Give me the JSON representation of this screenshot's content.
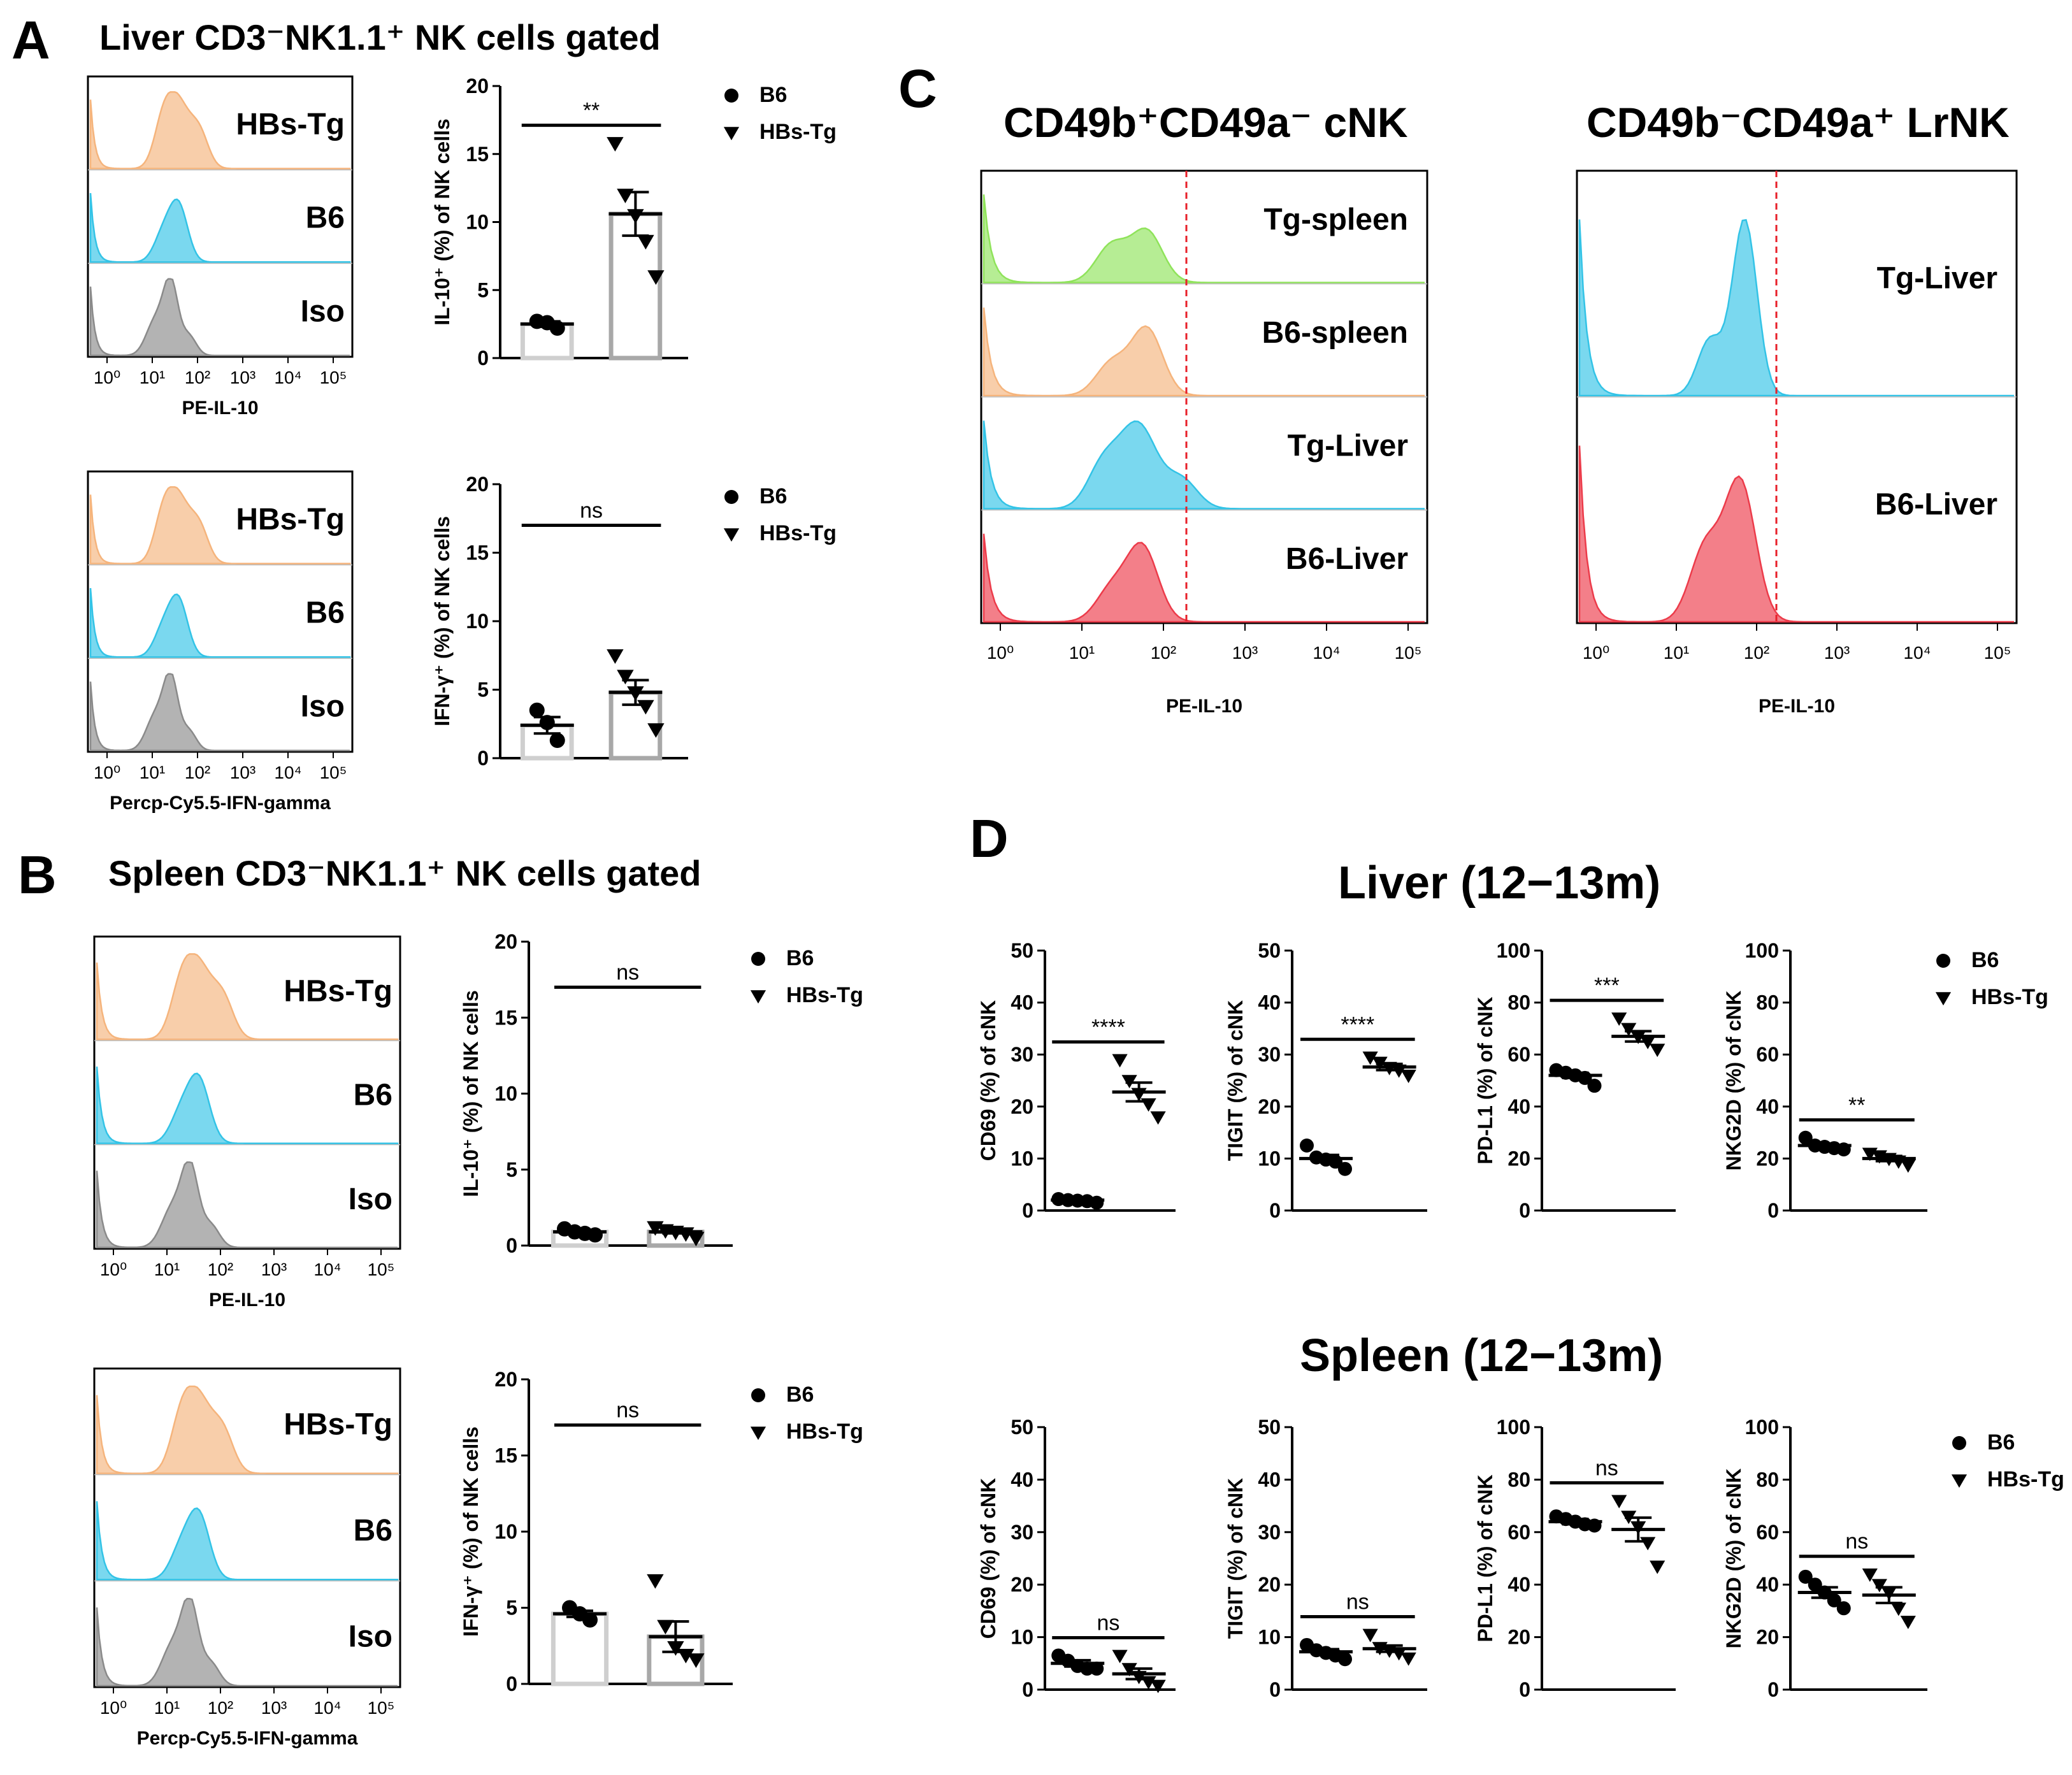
{
  "panels": {
    "A": {
      "letter": "A",
      "title": "Liver CD3⁻NK1.1⁺ NK cells gated",
      "histograms": [
        {
          "rows": [
            "HBs-Tg",
            "B6",
            "Iso"
          ],
          "xlabel": "PE-IL-10"
        },
        {
          "rows": [
            "HBs-Tg",
            "B6",
            "Iso"
          ],
          "xlabel": "Percp-Cy5.5-IFN-gamma"
        }
      ]
    },
    "B": {
      "letter": "B",
      "title": "Spleen CD3⁻NK1.1⁺ NK cells gated",
      "histograms": [
        {
          "rows": [
            "HBs-Tg",
            "B6",
            "Iso"
          ],
          "xlabel": "PE-IL-10"
        },
        {
          "rows": [
            "HBs-Tg",
            "B6",
            "Iso"
          ],
          "xlabel": "Percp-Cy5.5-IFN-gamma"
        }
      ]
    },
    "C": {
      "letter": "C",
      "left_title": "CD49b⁺CD49a⁻ cNK",
      "right_title": "CD49b⁻CD49a⁺ LrNK",
      "left_rows": [
        "Tg-spleen",
        "B6-spleen",
        "Tg-Liver",
        "B6-Liver"
      ],
      "right_rows": [
        "Tg-Liver",
        "B6-Liver"
      ],
      "xlabel": "PE-IL-10"
    },
    "D": {
      "letter": "D",
      "liver_title": "Liver (12−13m)",
      "spleen_title": "Spleen (12−13m)"
    }
  },
  "axis_ticks": {
    "log_decades": [
      "10⁰",
      "10¹",
      "10²",
      "10³",
      "10⁴",
      "10⁵"
    ]
  },
  "legend": {
    "b6": "B6",
    "tg": "HBs-Tg"
  },
  "colors": {
    "tg": "#f5b47c",
    "b6": "#33c3e6",
    "iso": "#8a8a8a",
    "green": "#8fe35a",
    "red": "#ec3b4a",
    "dash": "#e8202a"
  },
  "chart_data": [
    {
      "id": "A-IL10",
      "type": "bar",
      "categories": [
        "B6",
        "HBs-Tg"
      ],
      "ylabel": "IL-10⁺ (%) of NK cells",
      "ylim": [
        0,
        20
      ],
      "yticks": [
        "0",
        "5",
        "10",
        "15",
        "20"
      ],
      "means": [
        2.5,
        10.6
      ],
      "sem": [
        0.2,
        1.6
      ],
      "points": [
        [
          2.7,
          2.6,
          2.2
        ],
        [
          15.8,
          12.0,
          10.5,
          8.6,
          6.0
        ]
      ],
      "significance": "**"
    },
    {
      "id": "A-IFN",
      "type": "bar",
      "categories": [
        "B6",
        "HBs-Tg"
      ],
      "ylabel": "IFN-γ⁺ (%) of NK cells",
      "ylim": [
        0,
        20
      ],
      "yticks": [
        "0",
        "5",
        "10",
        "15",
        "20"
      ],
      "means": [
        2.4,
        4.8
      ],
      "sem": [
        0.6,
        0.9
      ],
      "points": [
        [
          3.5,
          2.6,
          1.3
        ],
        [
          7.5,
          6.0,
          4.8,
          3.8,
          2.1
        ]
      ],
      "significance": "ns"
    },
    {
      "id": "B-IL10",
      "type": "bar",
      "categories": [
        "B6",
        "HBs-Tg"
      ],
      "ylabel": "IL-10⁺ (%) of NK cells",
      "ylim": [
        0,
        20
      ],
      "yticks": [
        "0",
        "5",
        "10",
        "15",
        "20"
      ],
      "means": [
        0.9,
        0.9
      ],
      "sem": [
        0.1,
        0.1
      ],
      "points": [
        [
          1.1,
          0.9,
          0.8,
          0.7
        ],
        [
          1.2,
          1.0,
          0.9,
          0.8,
          0.5
        ]
      ],
      "significance": "ns"
    },
    {
      "id": "B-IFN",
      "type": "bar",
      "categories": [
        "B6",
        "HBs-Tg"
      ],
      "ylabel": "IFN-γ⁺ (%) of NK cells",
      "ylim": [
        0,
        20
      ],
      "yticks": [
        "0",
        "5",
        "10",
        "15",
        "20"
      ],
      "means": [
        4.6,
        3.1
      ],
      "sem": [
        0.2,
        1.0
      ],
      "points": [
        [
          5.0,
          4.6,
          4.2
        ],
        [
          6.8,
          3.8,
          2.4,
          1.9,
          1.6
        ]
      ],
      "significance": "ns"
    },
    {
      "id": "D-L-CD69",
      "type": "scatter",
      "categories": [
        "B6",
        "HBs-Tg"
      ],
      "ylabel": "CD69 (%) of cNK",
      "ylim": [
        0,
        50
      ],
      "yticks": [
        "0",
        "10",
        "20",
        "30",
        "40",
        "50"
      ],
      "means": [
        2.0,
        22.8
      ],
      "sem": [
        0.2,
        1.8
      ],
      "points": [
        [
          2.2,
          2.0,
          1.9,
          1.8,
          1.5
        ],
        [
          29.0,
          25.0,
          22.5,
          20.5,
          18.0
        ]
      ],
      "significance": "****"
    },
    {
      "id": "D-L-TIGIT",
      "type": "scatter",
      "categories": [
        "B6",
        "HBs-Tg"
      ],
      "ylabel": "TIGIT (%) of cNK",
      "ylim": [
        0,
        50
      ],
      "yticks": [
        "0",
        "10",
        "20",
        "30",
        "40",
        "50"
      ],
      "means": [
        10.0,
        27.6
      ],
      "sem": [
        0.7,
        0.6
      ],
      "points": [
        [
          12.5,
          10.2,
          9.8,
          9.4,
          8.0
        ],
        [
          29.5,
          28.5,
          27.5,
          27.0,
          26.0
        ]
      ],
      "significance": "****"
    },
    {
      "id": "D-L-PDL1",
      "type": "scatter",
      "categories": [
        "B6",
        "HBs-Tg"
      ],
      "ylabel": "PD-L1 (%) of cNK",
      "ylim": [
        0,
        100
      ],
      "yticks": [
        "0",
        "20",
        "40",
        "60",
        "80",
        "100"
      ],
      "means": [
        52.0,
        67.0
      ],
      "sem": [
        1.0,
        2.0
      ],
      "points": [
        [
          54.0,
          53.0,
          52.0,
          51.0,
          48.0
        ],
        [
          74.0,
          70.0,
          67.0,
          65.0,
          62.0
        ]
      ],
      "significance": "***"
    },
    {
      "id": "D-L-NKG2D",
      "type": "scatter",
      "categories": [
        "B6",
        "HBs-Tg"
      ],
      "ylabel": "NKG2D (%) of cNK",
      "ylim": [
        0,
        100
      ],
      "yticks": [
        "0",
        "20",
        "40",
        "60",
        "80",
        "100"
      ],
      "means": [
        25.0,
        20.0
      ],
      "sem": [
        0.8,
        1.0
      ],
      "points": [
        [
          28.0,
          25.0,
          24.5,
          24.0,
          23.5
        ],
        [
          22.0,
          21.0,
          20.0,
          19.0,
          17.5
        ]
      ],
      "significance": "**"
    },
    {
      "id": "D-S-CD69",
      "type": "scatter",
      "categories": [
        "B6",
        "HBs-Tg"
      ],
      "ylabel": "CD69 (%) of cNK",
      "ylim": [
        0,
        50
      ],
      "yticks": [
        "0",
        "10",
        "20",
        "30",
        "40",
        "50"
      ],
      "means": [
        5.0,
        3.0
      ],
      "sem": [
        0.6,
        1.0
      ],
      "points": [
        [
          6.5,
          5.5,
          4.5,
          4.0,
          4.0
        ],
        [
          6.5,
          4.0,
          2.5,
          1.5,
          0.8
        ]
      ],
      "significance": "ns"
    },
    {
      "id": "D-S-TIGIT",
      "type": "scatter",
      "categories": [
        "B6",
        "HBs-Tg"
      ],
      "ylabel": "TIGIT (%) of cNK",
      "ylim": [
        0,
        50
      ],
      "yticks": [
        "0",
        "10",
        "20",
        "30",
        "40",
        "50"
      ],
      "means": [
        7.2,
        7.8
      ],
      "sem": [
        0.5,
        0.6
      ],
      "points": [
        [
          8.5,
          7.5,
          7.0,
          6.5,
          5.8
        ],
        [
          10.5,
          8.0,
          7.5,
          7.0,
          6.0
        ]
      ],
      "significance": "ns"
    },
    {
      "id": "D-S-PDL1",
      "type": "scatter",
      "categories": [
        "B6",
        "HBs-Tg"
      ],
      "ylabel": "PD-L1 (%) of cNK",
      "ylim": [
        0,
        100
      ],
      "yticks": [
        "0",
        "20",
        "40",
        "60",
        "80",
        "100"
      ],
      "means": [
        64.0,
        61.0
      ],
      "sem": [
        1.0,
        4.5
      ],
      "points": [
        [
          66.0,
          65.0,
          64.0,
          63.0,
          62.5
        ],
        [
          72.0,
          66.0,
          62.0,
          56.0,
          47.0
        ]
      ],
      "significance": "ns"
    },
    {
      "id": "D-S-NKG2D",
      "type": "scatter",
      "categories": [
        "B6",
        "HBs-Tg"
      ],
      "ylabel": "NKG2D (%) of cNK",
      "ylim": [
        0,
        100
      ],
      "yticks": [
        "0",
        "20",
        "40",
        "60",
        "80",
        "100"
      ],
      "means": [
        37.0,
        36.0
      ],
      "sem": [
        2.0,
        3.0
      ],
      "points": [
        [
          43.0,
          40.0,
          37.0,
          34.0,
          31.0
        ],
        [
          44.0,
          40.0,
          37.0,
          31.0,
          26.0
        ]
      ],
      "significance": "ns"
    }
  ]
}
